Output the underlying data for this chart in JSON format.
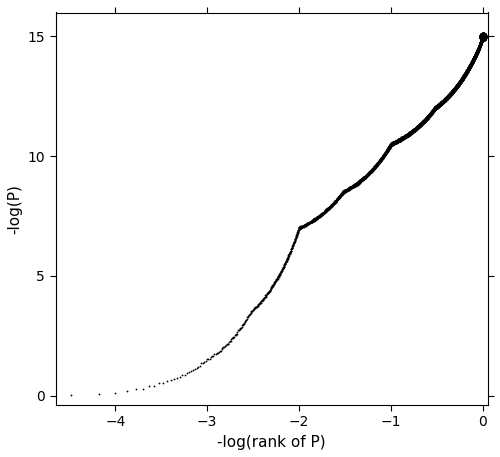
{
  "xlabel": "-log(rank of P)",
  "ylabel": "-log(P)",
  "xlim": [
    -4.65,
    0.05
  ],
  "ylim": [
    -0.4,
    16
  ],
  "yticks": [
    0,
    5,
    10,
    15
  ],
  "xticks": [
    -4,
    -3,
    -2,
    -1,
    0
  ],
  "n_total": 30000,
  "n_open_circles": 35,
  "background_color": "#ffffff",
  "seed": 77,
  "marker_size_bulk": 1.3,
  "marker_size_open": 4.5,
  "markeredgewidth_open": 0.9
}
